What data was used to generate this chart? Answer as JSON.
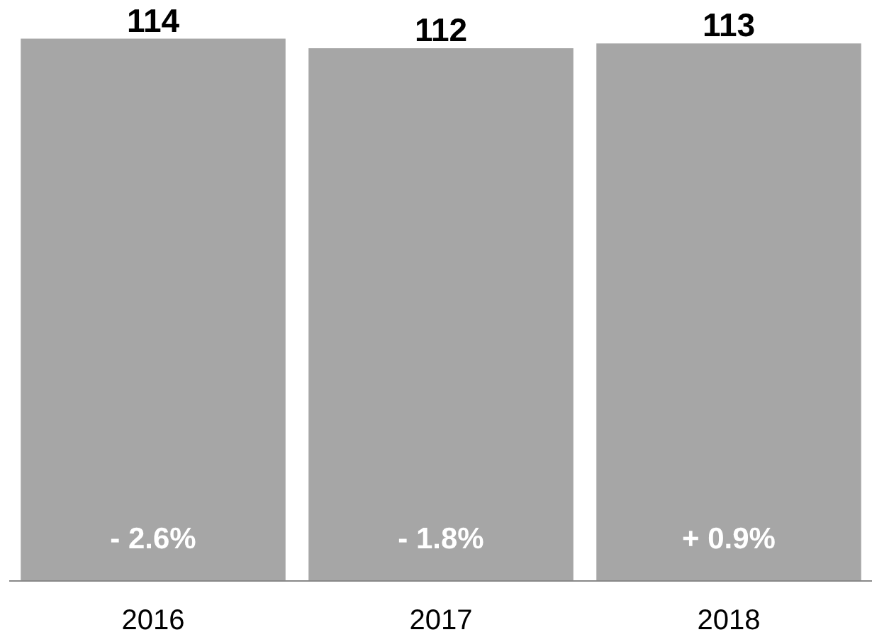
{
  "chart_data": {
    "type": "bar",
    "categories": [
      "2016",
      "2017",
      "2018"
    ],
    "values": [
      114,
      112,
      113
    ],
    "color": "#a6a6a6",
    "data_labels": true,
    "grid": false,
    "annotations": [
      "- 2.6%",
      "- 1.8%",
      "+ 0.9%"
    ]
  }
}
